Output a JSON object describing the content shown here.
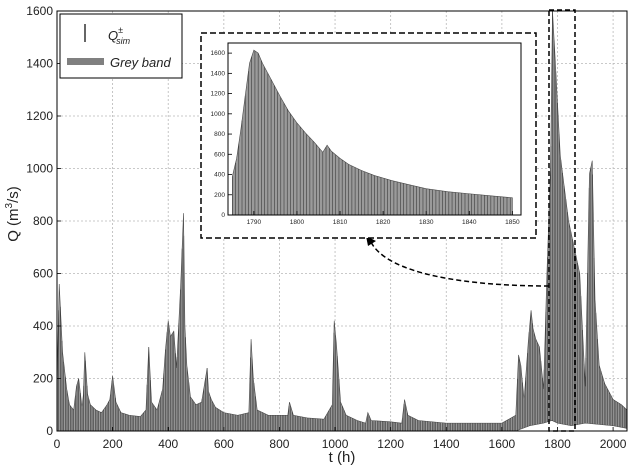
{
  "chart_data": [
    {
      "id": "main",
      "type": "area",
      "xlabel_base": "t (h)",
      "ylabel_base": "Q (m",
      "ylabel_sup": "3",
      "ylabel_tail": "/s)",
      "xlim": [
        0,
        2050
      ],
      "ylim": [
        0,
        1600
      ],
      "xticks": [
        0,
        200,
        400,
        600,
        800,
        1000,
        1200,
        1400,
        1600,
        1800,
        2000
      ],
      "yticks": [
        0,
        200,
        400,
        600,
        800,
        1000,
        1200,
        1400,
        1600
      ],
      "grid": true,
      "legend_position": "top-left",
      "legend": {
        "line_label_base": "Q",
        "line_label_sup": "±",
        "line_label_sub": "sim",
        "band_label": "Grey band"
      },
      "series": [
        {
          "kind": "band-upper",
          "x": [
            0,
            8,
            20,
            35,
            45,
            60,
            70,
            78,
            90,
            95,
            100,
            110,
            120,
            140,
            160,
            180,
            190,
            200,
            212,
            230,
            260,
            300,
            320,
            330,
            340,
            360,
            380,
            390,
            400,
            408,
            420,
            430,
            445,
            455,
            460,
            467,
            480,
            500,
            520,
            540,
            545,
            555,
            570,
            600,
            650,
            690,
            698,
            706,
            720,
            760,
            800,
            830,
            836,
            850,
            900,
            960,
            990,
            997,
            1005,
            1020,
            1040,
            1080,
            1110,
            1118,
            1130,
            1200,
            1240,
            1250,
            1262,
            1300,
            1400,
            1500,
            1600,
            1650,
            1660,
            1668,
            1680,
            1695,
            1705,
            1712,
            1722,
            1735,
            1750,
            1762,
            1775,
            1782,
            1790,
            1800,
            1810,
            1822,
            1840,
            1860,
            1880,
            1900,
            1915,
            1925,
            1935,
            1950,
            1970,
            2000,
            2030,
            2050
          ],
          "y": [
            160,
            560,
            300,
            160,
            100,
            80,
            170,
            200,
            90,
            140,
            300,
            140,
            100,
            80,
            70,
            100,
            120,
            210,
            110,
            70,
            60,
            55,
            80,
            320,
            110,
            80,
            160,
            310,
            420,
            360,
            380,
            240,
            560,
            830,
            400,
            250,
            130,
            100,
            110,
            240,
            150,
            120,
            90,
            70,
            60,
            70,
            350,
            200,
            80,
            60,
            60,
            60,
            110,
            60,
            50,
            45,
            100,
            420,
            330,
            110,
            60,
            40,
            30,
            70,
            40,
            35,
            30,
            120,
            60,
            40,
            30,
            30,
            30,
            60,
            290,
            250,
            120,
            340,
            460,
            390,
            350,
            320,
            160,
            600,
            1000,
            1600,
            1450,
            1250,
            1050,
            950,
            800,
            700,
            600,
            170,
            980,
            1030,
            500,
            250,
            180,
            120,
            100,
            80
          ]
        },
        {
          "kind": "band-lower",
          "x": [
            0,
            200,
            400,
            600,
            800,
            1000,
            1200,
            1400,
            1600,
            1650,
            1700,
            1750,
            1780,
            1800,
            1850,
            1900,
            2000,
            2050
          ],
          "y": [
            0,
            0,
            0,
            0,
            0,
            0,
            0,
            0,
            0,
            0,
            20,
            30,
            40,
            30,
            20,
            30,
            20,
            10
          ]
        }
      ]
    },
    {
      "id": "inset",
      "type": "area",
      "xlim": [
        1784,
        1852
      ],
      "ylim": [
        0,
        1700
      ],
      "xticks": [
        1790,
        1800,
        1810,
        1820,
        1830,
        1840,
        1850
      ],
      "yticks": [
        0,
        200,
        400,
        600,
        800,
        1000,
        1200,
        1400,
        1600
      ],
      "grid": false,
      "series": [
        {
          "kind": "band-upper",
          "x": [
            1785,
            1786,
            1787,
            1788,
            1789,
            1790,
            1791,
            1792,
            1794,
            1796,
            1798,
            1800,
            1802,
            1804,
            1806,
            1807,
            1808,
            1810,
            1812,
            1815,
            1818,
            1822,
            1826,
            1830,
            1835,
            1840,
            1845,
            1850
          ],
          "y": [
            380,
            560,
            850,
            1180,
            1500,
            1630,
            1600,
            1500,
            1340,
            1180,
            1030,
            910,
            810,
            720,
            620,
            690,
            630,
            560,
            500,
            440,
            390,
            340,
            300,
            260,
            230,
            210,
            190,
            170
          ]
        }
      ]
    }
  ]
}
